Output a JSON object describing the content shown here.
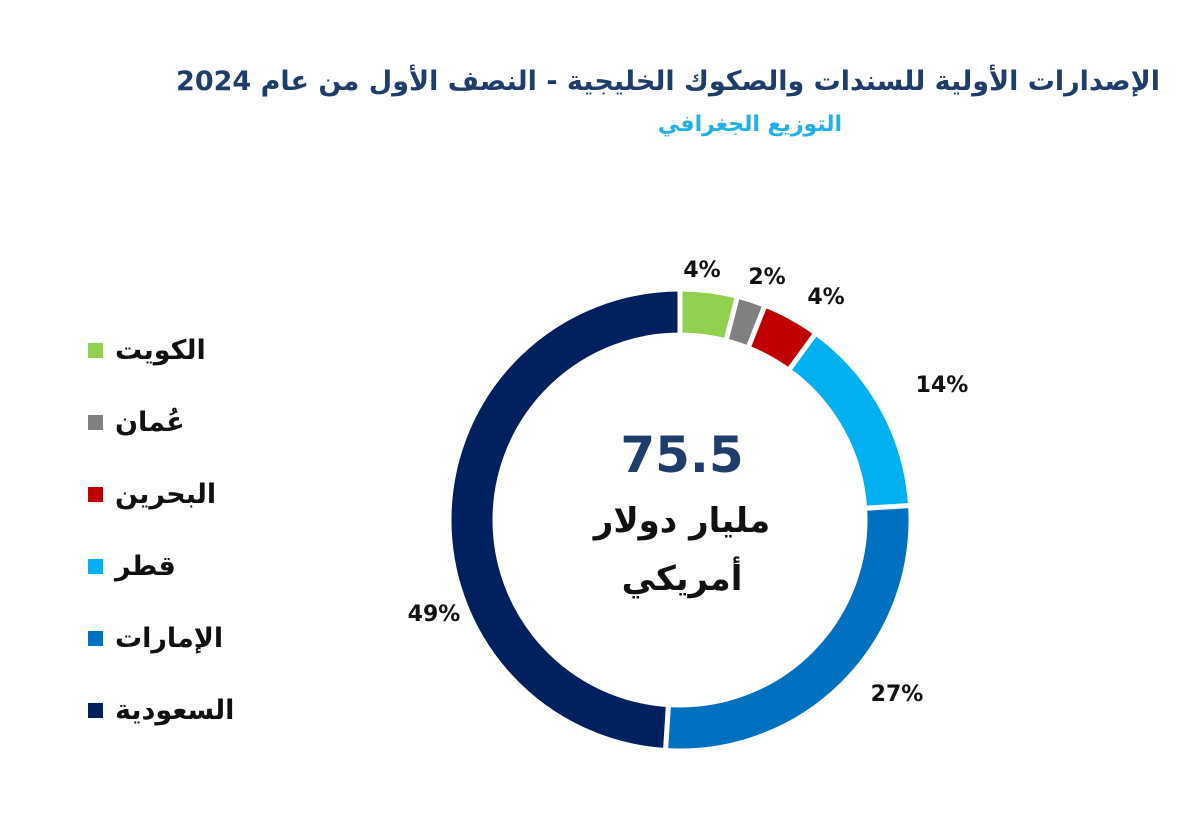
{
  "chart_data": {
    "type": "pie",
    "variant": "donut",
    "title": "الإصدارات الأولية للسندات والصكوك الخليجية - النصف الأول من عام 2024",
    "subtitle": "التوزيع الجغرافي",
    "center_value": "75.5",
    "center_label_line1": "مليار دولار",
    "center_label_line2": "أمريكي",
    "legend_position": "left",
    "slices": [
      {
        "name": "الكويت",
        "value": 4,
        "label": "4%",
        "color": "#92d050"
      },
      {
        "name": "عُمان",
        "value": 2,
        "label": "2%",
        "color": "#808080"
      },
      {
        "name": "البحرين",
        "value": 4,
        "label": "4%",
        "color": "#c00000"
      },
      {
        "name": "قطر",
        "value": 14,
        "label": "14%",
        "color": "#00b0f0"
      },
      {
        "name": "الإمارات",
        "value": 27,
        "label": "27%",
        "color": "#0070c0"
      },
      {
        "name": "السعودية",
        "value": 49,
        "label": "49%",
        "color": "#002060"
      }
    ]
  }
}
